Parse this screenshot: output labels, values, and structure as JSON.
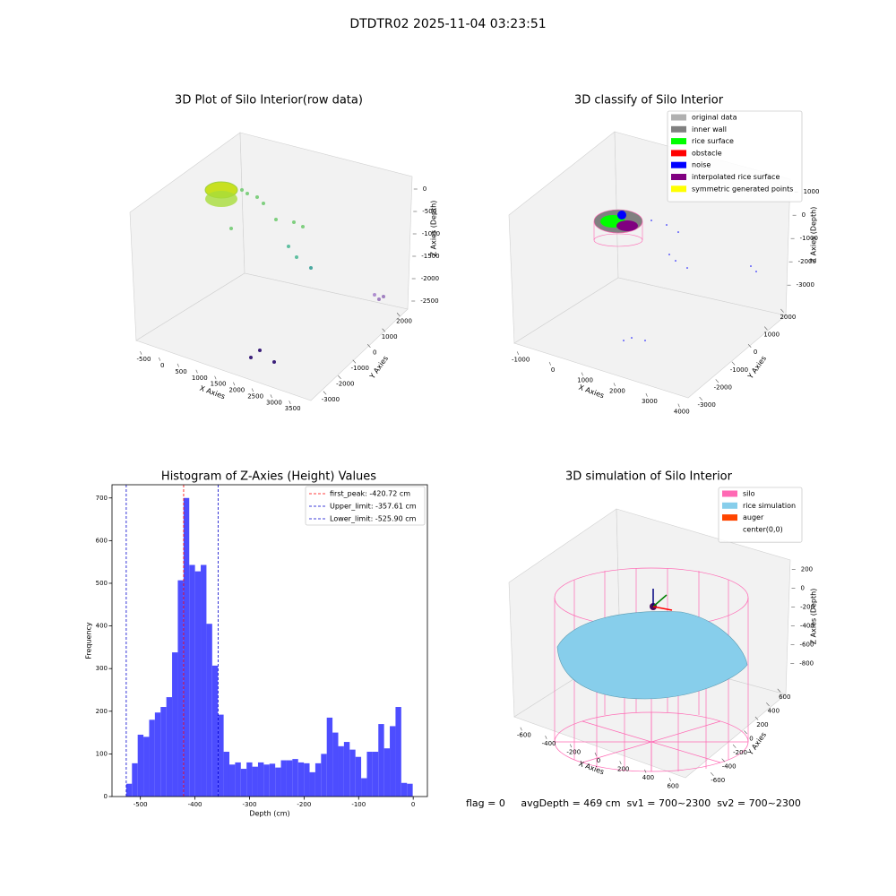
{
  "title": "DTDTR02 2025-11-04 03:23:51",
  "chart_data": [
    {
      "type": "scatter3d",
      "title": "3D Plot of Silo Interior(row data)",
      "xlabel": "X Axies",
      "ylabel": "Y Axies",
      "zlabel": "Z Axies (Depth)",
      "xlim": [
        -800,
        3700
      ],
      "xticks": [
        -500,
        0,
        500,
        1000,
        1500,
        2000,
        2500,
        3000,
        3500
      ],
      "ylim": [
        -3300,
        2300
      ],
      "yticks": [
        -3000,
        -2000,
        -1000,
        0,
        1000,
        2000
      ],
      "zlim": [
        -2700,
        200
      ],
      "zticks": [
        -2500,
        -2000,
        -1500,
        -1000,
        -500,
        0
      ]
    },
    {
      "type": "scatter3d",
      "title": "3D classify of Silo Interior",
      "xlabel": "X Axies",
      "ylabel": "Y Axies",
      "zlabel": "Z Axies (Depth)",
      "xlim": [
        -1200,
        4200
      ],
      "xticks": [
        -1000,
        0,
        1000,
        2000,
        3000,
        4000
      ],
      "ylim": [
        -3200,
        2200
      ],
      "yticks": [
        -3000,
        -2000,
        -1000,
        0,
        1000,
        2000
      ],
      "zlim": [
        -3300,
        1200
      ],
      "zticks": [
        -3000,
        -2000,
        -1000,
        0,
        1000
      ],
      "legend": "upper right",
      "series": [
        {
          "name": "original data",
          "color": "#b0b0b0"
        },
        {
          "name": "inner wall",
          "color": "#808080"
        },
        {
          "name": "rice surface",
          "color": "#00ff00"
        },
        {
          "name": "obstacle",
          "color": "#ff0000"
        },
        {
          "name": "noise",
          "color": "#0000ff"
        },
        {
          "name": "interpolated rice surface",
          "color": "#800080"
        },
        {
          "name": "symmetric generated points",
          "color": "#ffff00"
        }
      ]
    },
    {
      "type": "histogram",
      "title": "Histogram of Z-Axies (Height) Values",
      "xlabel": "Depth (cm)",
      "ylabel": "Frequency",
      "color": "#4d4dff",
      "bins": [
        -525.9,
        -515.4,
        -504.9,
        -494.4,
        -483.9,
        -473.4,
        -462.9,
        -452.4,
        -441.9,
        -431.4,
        -420.9,
        -410.4,
        -399.9,
        -389.4,
        -378.9,
        -368.4,
        -357.9,
        -347.4,
        -336.9,
        -326.4,
        -315.9,
        -305.4,
        -294.9,
        -284.4,
        -273.9,
        -263.4,
        -252.9,
        -242.4,
        -231.9,
        -221.4,
        -210.9,
        -200.4,
        -189.9,
        -179.4,
        -168.9,
        -158.4,
        -147.9,
        -137.4,
        -126.9,
        -116.4,
        -105.9,
        -95.4,
        -84.9,
        -74.4,
        -63.9,
        -53.4,
        -42.9,
        -32.4,
        -21.9,
        -11.4,
        -0.9
      ],
      "values": [
        30,
        78,
        145,
        140,
        180,
        197,
        210,
        233,
        338,
        507,
        700,
        543,
        528,
        543,
        405,
        307,
        192,
        105,
        75,
        80,
        65,
        80,
        70,
        80,
        75,
        77,
        68,
        85,
        85,
        88,
        80,
        78,
        57,
        78,
        100,
        185,
        150,
        118,
        128,
        110,
        93,
        43,
        105,
        105,
        170,
        113,
        165,
        210,
        32,
        30
      ],
      "xlim": [
        -552,
        26
      ],
      "xticks": [
        -500,
        -400,
        -300,
        -200,
        -100,
        0
      ],
      "ylim": [
        0,
        731
      ],
      "yticks": [
        0,
        100,
        200,
        300,
        400,
        500,
        600,
        700
      ],
      "legend": "upper right",
      "vlines": [
        {
          "name": "first_peak: -420.72 cm",
          "value": -420.72,
          "color": "#ff0000"
        },
        {
          "name": "Upper_limit: -357.61 cm",
          "value": -357.61,
          "color": "#0000cc"
        },
        {
          "name": "Lower_limit: -525.90 cm",
          "value": -525.9,
          "color": "#0000cc"
        }
      ]
    },
    {
      "type": "surface3d",
      "title": "3D simulation of Silo Interior",
      "xlabel": "X Axies",
      "ylabel": "Y Axies",
      "zlabel": "Z Axies (Depth)",
      "xlim": [
        -700,
        700
      ],
      "xticks": [
        -600,
        -400,
        -200,
        0,
        200,
        400,
        600
      ],
      "ylim": [
        -700,
        700
      ],
      "yticks": [
        -600,
        -400,
        -200,
        0,
        200,
        400,
        600
      ],
      "zlim": [
        -950,
        350
      ],
      "zticks": [
        -800,
        -600,
        -400,
        -200,
        0,
        200
      ],
      "legend": "upper right",
      "series": [
        {
          "name": "silo",
          "color": "#ff69b4"
        },
        {
          "name": "rice simulation",
          "color": "#87ceeb"
        },
        {
          "name": "auger",
          "color": "#ff4500"
        },
        {
          "name": "center(0,0)",
          "color": "#ffffff"
        }
      ]
    }
  ],
  "footer": "flag = 0     avgDepth = 469 cm  sv1 = 700~2300  sv2 = 700~2300"
}
